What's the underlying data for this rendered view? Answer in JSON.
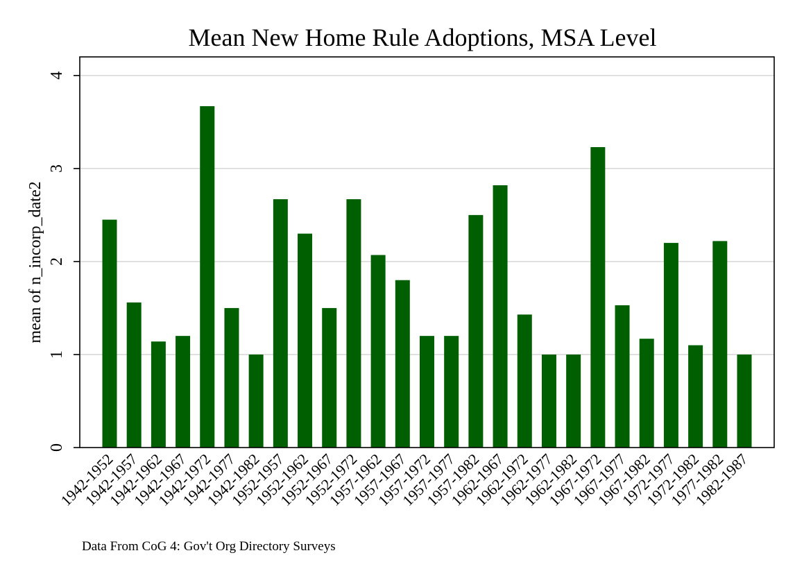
{
  "chart_data": {
    "type": "bar",
    "title": "Mean New Home Rule Adoptions, MSA Level",
    "ylabel": "mean of n_incorp_date2",
    "xlabel": "",
    "note": "Data From CoG 4: Gov't Org Directory Surveys",
    "ylim": [
      0,
      4.2
    ],
    "yticks": [
      0,
      1,
      2,
      3,
      4
    ],
    "grid": true,
    "legend": "none",
    "bar_color": "#005f00",
    "categories": [
      "1942-1952",
      "1942-1957",
      "1942-1962",
      "1942-1967",
      "1942-1972",
      "1942-1977",
      "1942-1982",
      "1952-1957",
      "1952-1962",
      "1952-1967",
      "1952-1972",
      "1957-1962",
      "1957-1967",
      "1957-1972",
      "1957-1977",
      "1957-1982",
      "1962-1967",
      "1962-1972",
      "1962-1977",
      "1962-1982",
      "1967-1972",
      "1967-1977",
      "1967-1982",
      "1972-1977",
      "1972-1982",
      "1977-1982",
      "1982-1987"
    ],
    "values": [
      2.45,
      1.56,
      1.14,
      1.2,
      3.67,
      1.5,
      1.0,
      2.67,
      2.3,
      1.5,
      2.67,
      2.07,
      1.8,
      1.2,
      1.2,
      2.5,
      2.82,
      1.43,
      1.0,
      1.0,
      3.23,
      1.53,
      1.17,
      2.2,
      1.1,
      2.22,
      1.0
    ]
  }
}
